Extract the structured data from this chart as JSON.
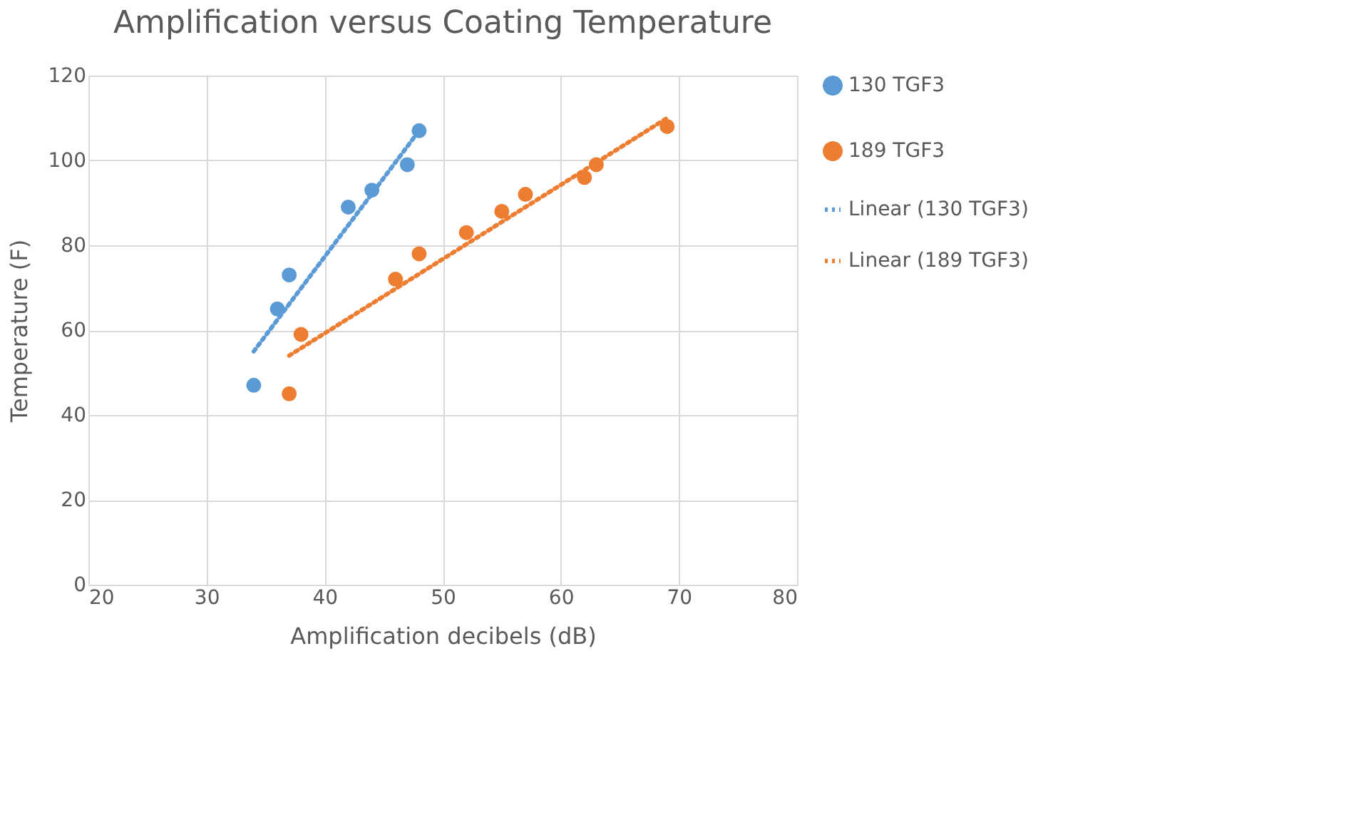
{
  "chart_data": {
    "type": "scatter",
    "title": "Amplification versus Coating Temperature",
    "xlabel": "Amplification decibels (dB)",
    "ylabel": "Temperature (F)",
    "series": [
      {
        "name": "130 TGF3",
        "color": "#5b9bd5",
        "x": [
          34,
          36,
          37,
          42,
          44,
          47,
          48
        ],
        "values": [
          47,
          65,
          73,
          89,
          93,
          99,
          107
        ],
        "marker": "circle"
      },
      {
        "name": "189 TGF3",
        "color": "#ed7d31",
        "x": [
          37,
          38,
          46,
          48,
          52,
          55,
          57,
          62,
          63,
          69
        ],
        "values": [
          45,
          59,
          72,
          78,
          83,
          88,
          92,
          96,
          99,
          108
        ],
        "marker": "circle"
      },
      {
        "name": "Linear (130 TGF3)",
        "type": "line",
        "color": "#5b9bd5",
        "x": [
          34,
          48
        ],
        "values": [
          55,
          107
        ],
        "line_style": "dotted",
        "marker": "none"
      },
      {
        "name": "Linear (189 TGF3)",
        "type": "line",
        "color": "#ed7d31",
        "x": [
          37,
          69
        ],
        "values": [
          54,
          110
        ],
        "line_style": "dotted",
        "marker": "none"
      }
    ],
    "xlim": [
      20,
      80
    ],
    "xticks": [
      20,
      30,
      40,
      50,
      60,
      70,
      80
    ],
    "ylim": [
      0,
      120
    ],
    "yticks": [
      0,
      20,
      40,
      60,
      80,
      100,
      120
    ],
    "grid": true,
    "legend": "right"
  }
}
